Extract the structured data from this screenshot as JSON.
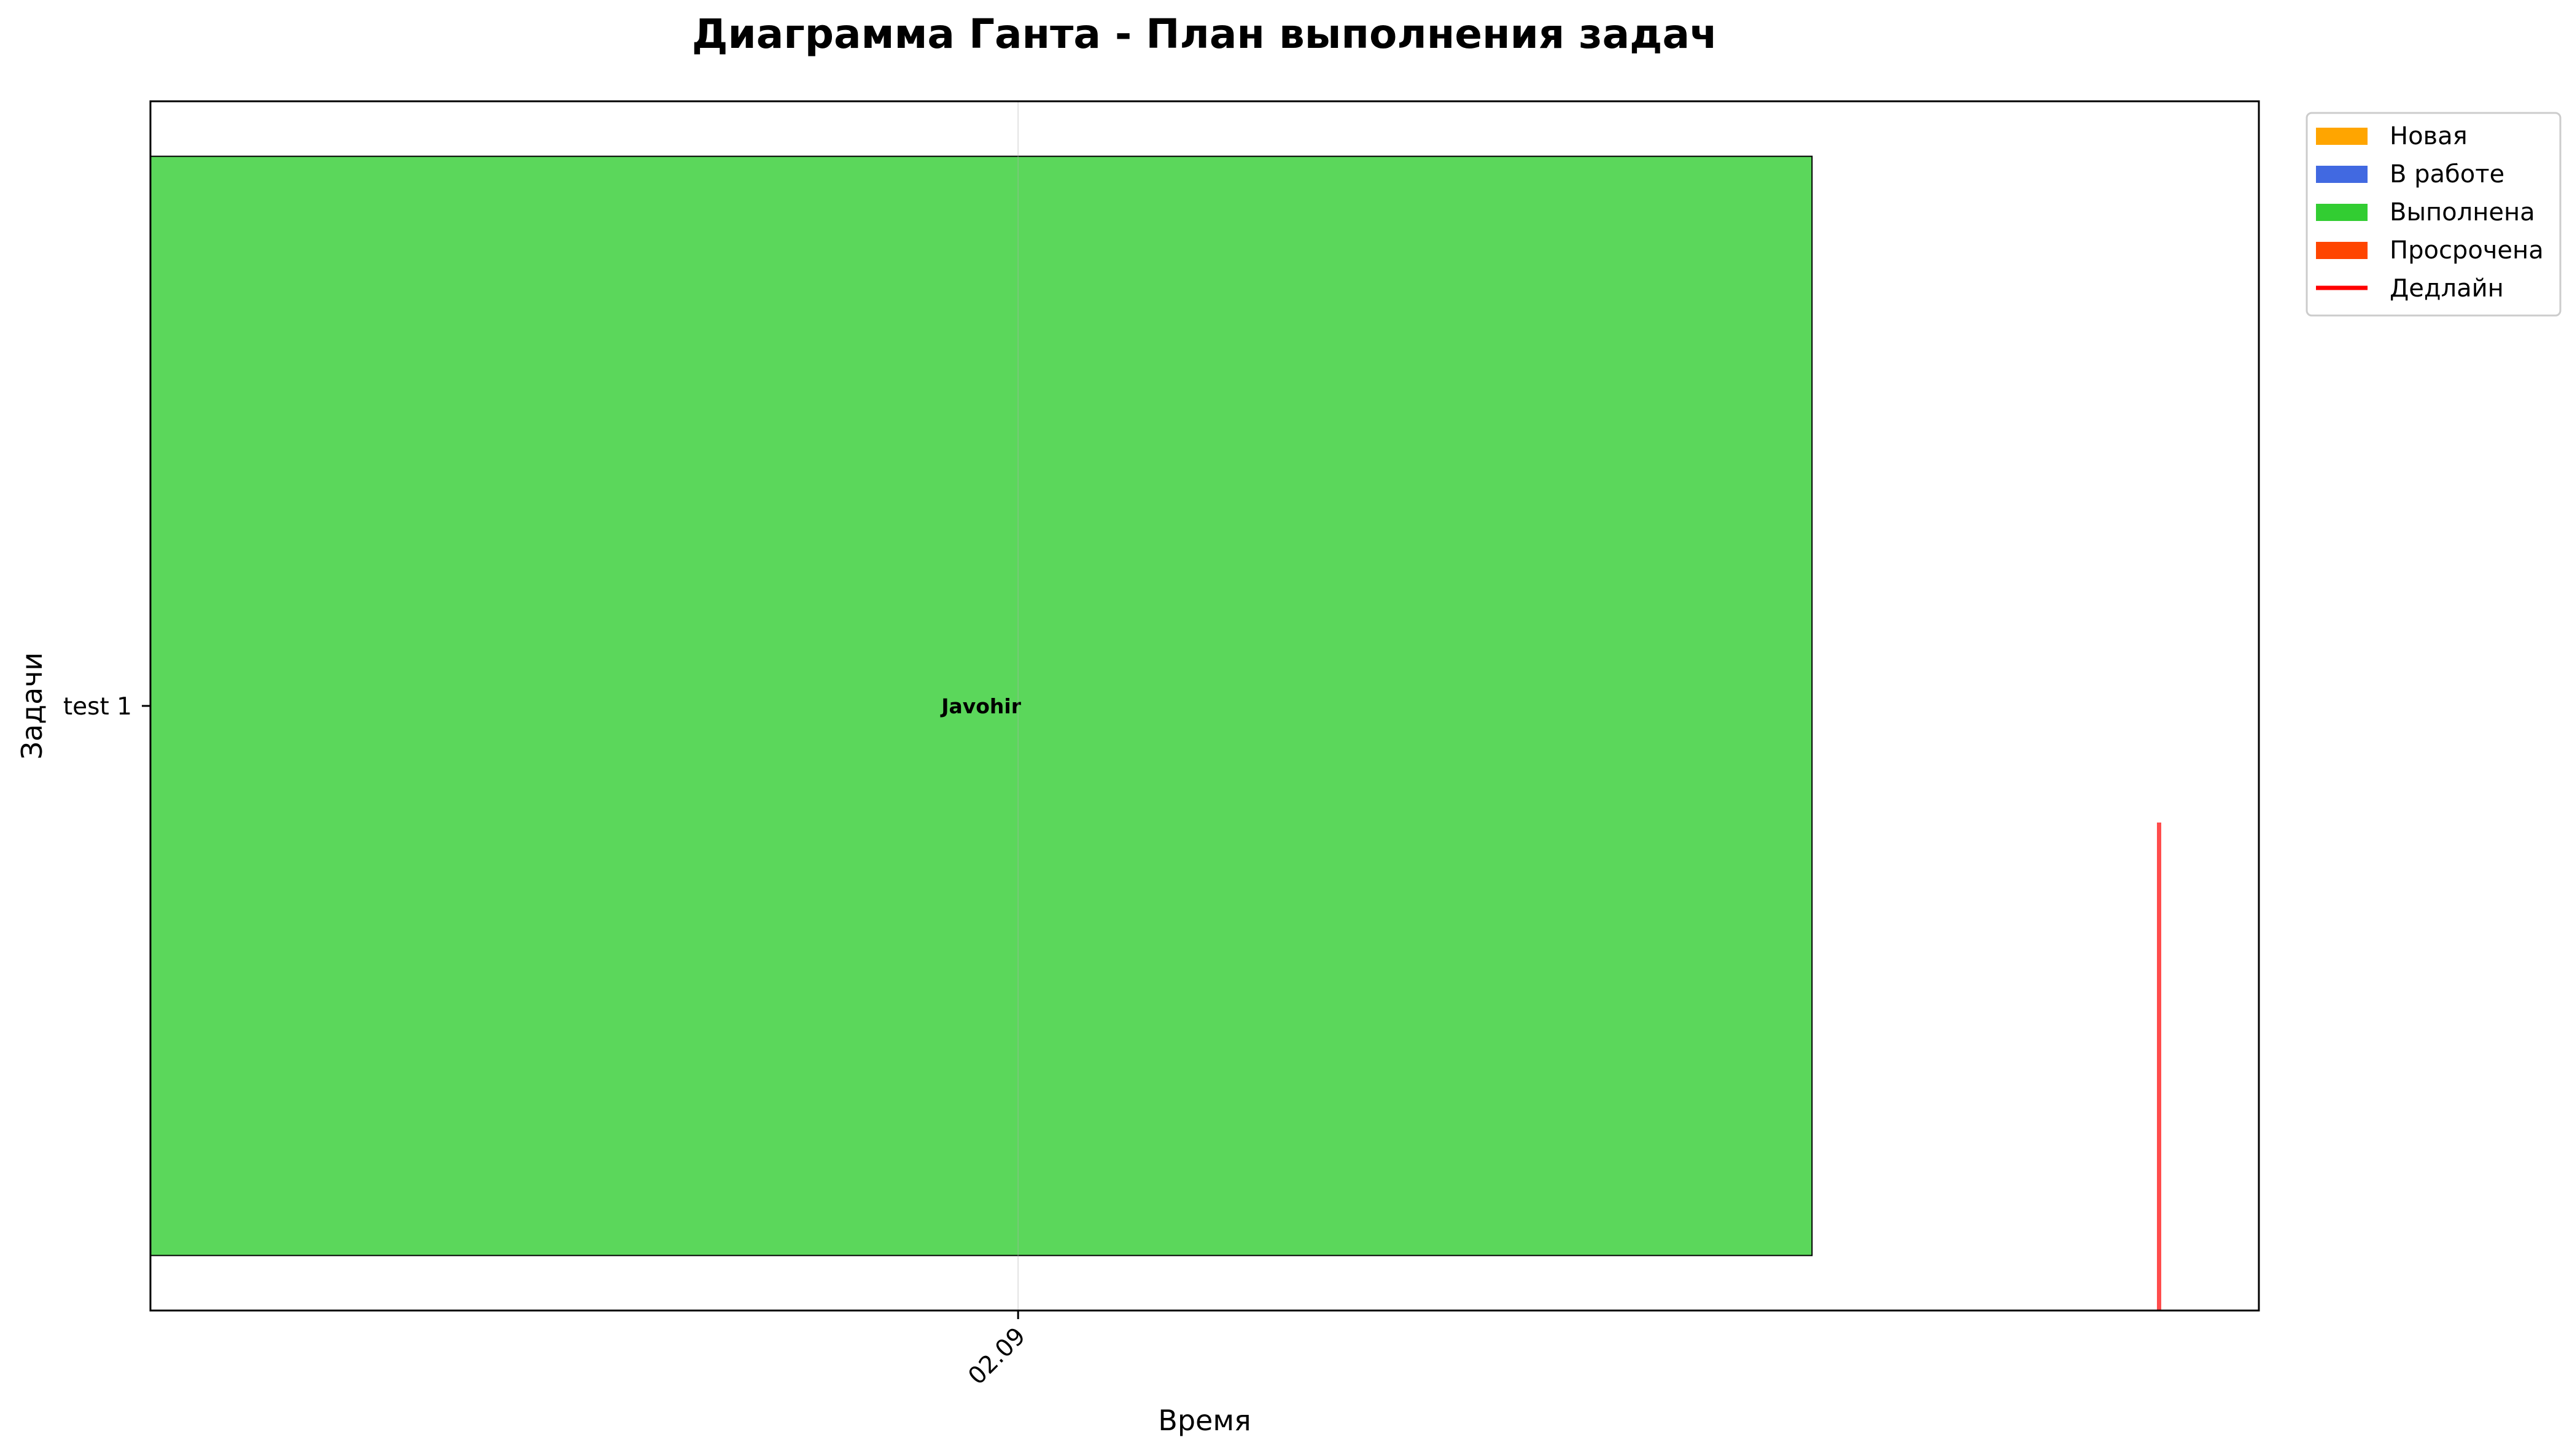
{
  "chart_data": {
    "type": "gantt",
    "title": "Диаграмма Ганта - План выполнения задач",
    "xlabel": "Время",
    "ylabel": "Задачи",
    "x_ticks": [
      {
        "label": "02.09",
        "value": 0.0
      }
    ],
    "xlim": [
      -1.0,
      1.43
    ],
    "tasks": [
      {
        "name": "test 1",
        "assignee": "Javohir",
        "start": -1.0,
        "end": 0.915,
        "status": "Выполнена",
        "deadline": 1.315
      }
    ],
    "statuses": [
      {
        "name": "Новая",
        "color": "#FFA500"
      },
      {
        "name": "В работе",
        "color": "#4169E1"
      },
      {
        "name": "Выполнена",
        "color": "#32CD32"
      },
      {
        "name": "Просрочена",
        "color": "#FF4500"
      }
    ],
    "deadline_legend": {
      "name": "Дедлайн",
      "color": "#FF0000"
    },
    "grid": true,
    "legend_position": "outside top-right"
  }
}
